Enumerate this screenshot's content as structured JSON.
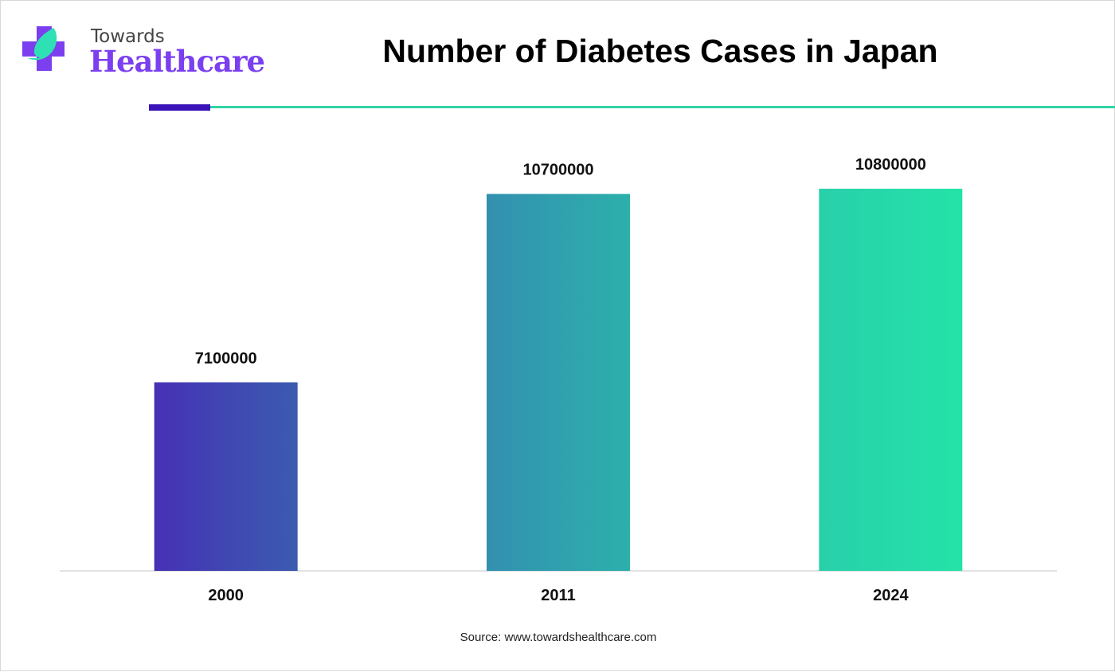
{
  "logo": {
    "line1": "Towards",
    "line2": "Healthcare"
  },
  "title": "Number of Diabetes Cases in Japan",
  "source": "Source: www.towardshealthcare.com",
  "chart_data": {
    "type": "bar",
    "title": "Number of Diabetes Cases in Japan",
    "categories": [
      "2000",
      "2011",
      "2024"
    ],
    "values": [
      7100000,
      10700000,
      10800000
    ],
    "data_labels": [
      "7100000",
      "10700000",
      "10800000"
    ],
    "xlabel": "",
    "ylabel": "",
    "ylim": [
      3500000,
      11500000
    ],
    "grid": false,
    "legend": "none",
    "colors": [
      [
        "#4631b5",
        "#3b5bb0"
      ],
      [
        "#3390b0",
        "#2cb0ab"
      ],
      [
        "#28d0aa",
        "#24e3a8"
      ]
    ]
  }
}
